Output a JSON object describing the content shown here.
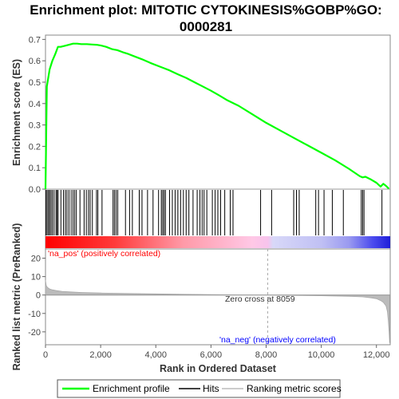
{
  "chart_data": {
    "type": "line",
    "title_line1": "Enrichment plot: MITOTIC CYTOKINESIS%GOBP%GO:",
    "title_line2": "0000281",
    "xlabel": "Rank in Ordered Dataset",
    "ylabel_top": "Enrichment score (ES)",
    "ylabel_bottom": "Ranked list metric (PreRanked)",
    "xlim": [
      0,
      12500
    ],
    "x_ticks": [
      0,
      2000,
      4000,
      6000,
      8000,
      10000,
      12000
    ],
    "x_tick_labels": [
      "0",
      "2,000",
      "4,000",
      "6,000",
      "8,000",
      "10,000",
      "12,000"
    ],
    "es_ylim": [
      0,
      0.72
    ],
    "es_ticks": [
      0.0,
      0.1,
      0.2,
      0.3,
      0.4,
      0.5,
      0.6,
      0.7
    ],
    "es_tick_labels": [
      "0.0",
      "0.1",
      "0.2",
      "0.3",
      "0.4",
      "0.5",
      "0.6",
      "0.7"
    ],
    "metric_ylim": [
      -27,
      25
    ],
    "metric_ticks": [
      -20,
      -10,
      0,
      10,
      20
    ],
    "metric_tick_labels": [
      "-20",
      "-10",
      "0",
      "10",
      "20"
    ],
    "zero_cross_rank": 8059,
    "annotations": {
      "zero_cross": "Zero cross at 8059",
      "pos_label": "'na_pos' (positively correlated)",
      "neg_label": "'na_neg' (negatively correlated)"
    },
    "legend": {
      "enrichment": "Enrichment profile",
      "hits": "Hits",
      "ranking": "Ranking metric scores"
    },
    "colors": {
      "es_line": "#00ff00",
      "hits": "#000000",
      "pos_text": "#ff0000",
      "neg_text": "#0000ff",
      "zero_line": "#aaaaaa",
      "metric_fill": "#bbbbbb"
    },
    "es_curve": {
      "x": [
        0,
        50,
        150,
        250,
        350,
        450,
        550,
        700,
        850,
        1000,
        1150,
        1300,
        1500,
        1700,
        1850,
        2000,
        2200,
        2400,
        2500,
        2600,
        2800,
        3000,
        3200,
        3500,
        3800,
        4100,
        4300,
        4500,
        4800,
        5100,
        5400,
        5700,
        6000,
        6300,
        6600,
        7000,
        7500,
        8000,
        8500,
        9000,
        9500,
        10000,
        10500,
        11000,
        11400,
        11500,
        11600,
        11800,
        12000,
        12150,
        12250,
        12350,
        12450
      ],
      "y": [
        0.0,
        0.48,
        0.56,
        0.6,
        0.63,
        0.665,
        0.665,
        0.67,
        0.675,
        0.68,
        0.68,
        0.678,
        0.678,
        0.676,
        0.675,
        0.672,
        0.665,
        0.655,
        0.652,
        0.65,
        0.64,
        0.632,
        0.622,
        0.607,
        0.59,
        0.575,
        0.565,
        0.555,
        0.537,
        0.52,
        0.5,
        0.48,
        0.46,
        0.438,
        0.415,
        0.39,
        0.35,
        0.31,
        0.275,
        0.24,
        0.205,
        0.17,
        0.135,
        0.095,
        0.06,
        0.055,
        0.058,
        0.045,
        0.03,
        0.012,
        0.025,
        0.015,
        0.002
      ]
    },
    "hits": [
      20,
      60,
      110,
      150,
      200,
      250,
      310,
      380,
      420,
      460,
      560,
      650,
      720,
      780,
      850,
      930,
      1000,
      1060,
      1120,
      1250,
      1400,
      1480,
      1560,
      1620,
      1700,
      1850,
      1900,
      2050,
      2450,
      2500,
      2560,
      2620,
      2900,
      3050,
      3150,
      3400,
      3500,
      3700,
      3900,
      4100,
      4200,
      4250,
      4300,
      4350,
      4500,
      4600,
      4700,
      4800,
      4900,
      5000,
      5100,
      5200,
      5350,
      5500,
      5600,
      5680,
      5750,
      5850,
      6050,
      6150,
      6250,
      6350,
      6500,
      6700,
      6800,
      7800,
      8200,
      9000,
      9100,
      9200,
      9800,
      9900,
      10100,
      10400,
      10800,
      11450,
      11500,
      11550,
      12200
    ],
    "metric_curve": {
      "x": [
        0,
        30,
        80,
        150,
        250,
        400,
        600,
        900,
        1300,
        2000,
        3000,
        4000,
        5000,
        6000,
        7000,
        8059,
        9000,
        10000,
        11000,
        11500,
        11800,
        12000,
        12150,
        12250,
        12350,
        12400,
        12430,
        12460,
        12480
      ],
      "y": [
        8,
        5,
        4,
        3.3,
        2.8,
        2.4,
        2.0,
        1.7,
        1.4,
        1.1,
        0.8,
        0.6,
        0.4,
        0.25,
        0.1,
        0,
        -0.2,
        -0.4,
        -0.7,
        -1.0,
        -1.5,
        -2.0,
        -3.0,
        -4.0,
        -6.0,
        -9.0,
        -14.0,
        -20.0,
        -26.0
      ]
    },
    "color_bar": {
      "stops": [
        {
          "offset": 0.0,
          "color": "#ff0000"
        },
        {
          "offset": 0.2,
          "color": "#ff3a3a"
        },
        {
          "offset": 0.4,
          "color": "#ff9aa8"
        },
        {
          "offset": 0.6,
          "color": "#ffc8e6"
        },
        {
          "offset": 0.645,
          "color": "#f7c3ec"
        },
        {
          "offset": 0.66,
          "color": "#d8d8f8"
        },
        {
          "offset": 0.8,
          "color": "#c0c0f4"
        },
        {
          "offset": 0.88,
          "color": "#9a9af0"
        },
        {
          "offset": 0.95,
          "color": "#4a4aee"
        },
        {
          "offset": 1.0,
          "color": "#1e1ed8"
        }
      ]
    }
  }
}
